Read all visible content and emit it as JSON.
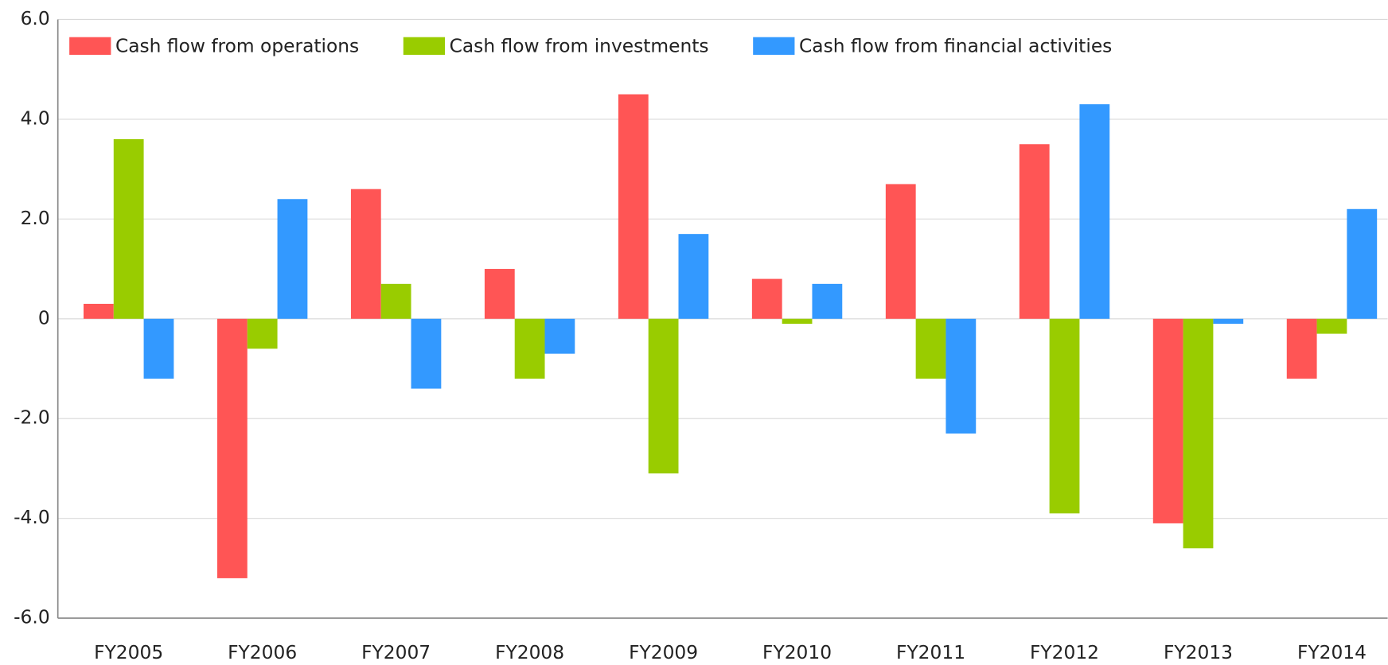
{
  "chart_data": {
    "type": "bar",
    "categories": [
      "FY2005",
      "FY2006",
      "FY2007",
      "FY2008",
      "FY2009",
      "FY2010",
      "FY2011",
      "FY2012",
      "FY2013",
      "FY2014"
    ],
    "series": [
      {
        "name": "Cash flow from operations",
        "color": "#ff5555",
        "values": [
          0.3,
          -5.2,
          2.6,
          1.0,
          4.5,
          0.8,
          2.7,
          3.5,
          -4.1,
          -1.2
        ]
      },
      {
        "name": "Cash flow from investments",
        "color": "#99cc00",
        "values": [
          3.6,
          -0.6,
          0.7,
          -1.2,
          -3.1,
          -0.1,
          -1.2,
          -3.9,
          -4.6,
          -0.3
        ]
      },
      {
        "name": "Cash flow from financial activities",
        "color": "#3399ff",
        "values": [
          -1.2,
          2.4,
          -1.4,
          -0.7,
          1.7,
          0.7,
          -2.3,
          4.3,
          -0.1,
          2.2
        ]
      }
    ],
    "ylim": [
      -6,
      6
    ],
    "yticks": [
      {
        "value": -6,
        "label": "-6.0"
      },
      {
        "value": -4,
        "label": "-4.0"
      },
      {
        "value": -2,
        "label": "-2.0"
      },
      0,
      {
        "value": 2,
        "label": "2.0"
      },
      {
        "value": 4,
        "label": "4.0"
      },
      {
        "value": 6,
        "label": "6.0"
      }
    ],
    "grid": true,
    "legend": "top-left"
  }
}
